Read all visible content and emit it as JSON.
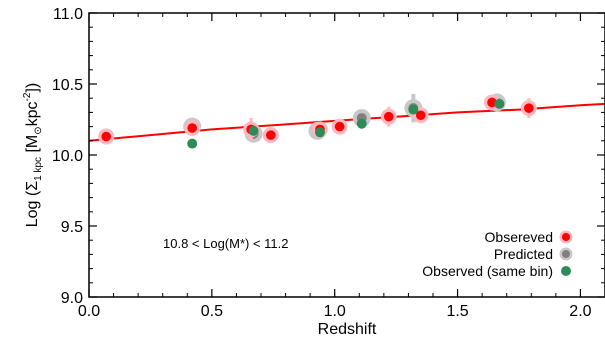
{
  "chart_data": {
    "type": "scatter",
    "xlabel": "Redshift",
    "ylabel": "Log (Σ1 kpc [M⊙kpc⁻²])",
    "xlim": [
      0.0,
      2.1
    ],
    "ylim": [
      9.0,
      11.0
    ],
    "x_ticks": [
      "0.0",
      "0.5",
      "1.0",
      "1.5",
      "2.0"
    ],
    "y_ticks": [
      "9.0",
      "9.5",
      "10.0",
      "10.5",
      "11.0"
    ],
    "annotation": "10.8 < Log(M*) < 11.2",
    "legend": {
      "position": "bottom-right",
      "entries": [
        "Obsereved",
        "Predicted",
        "Observed (same bin)"
      ]
    },
    "colors": {
      "observed": "#ff0000",
      "observed_halo": "#ffb7c0",
      "predicted": "#808080",
      "predicted_halo": "#c8c8c8",
      "same_bin": "#2e8b57",
      "fit": "#ff0000"
    },
    "fit_curve": {
      "x": [
        0.0,
        0.25,
        0.5,
        0.75,
        1.0,
        1.25,
        1.5,
        1.75,
        2.0,
        2.1
      ],
      "y": [
        10.1,
        10.14,
        10.18,
        10.21,
        10.24,
        10.27,
        10.3,
        10.32,
        10.35,
        10.36
      ]
    },
    "series": [
      {
        "name": "Obsereved",
        "points": [
          {
            "x": 0.07,
            "y": 10.13,
            "err": 0.03
          },
          {
            "x": 0.42,
            "y": 10.19,
            "err": 0.03
          },
          {
            "x": 0.66,
            "y": 10.18,
            "err": 0.08
          },
          {
            "x": 0.74,
            "y": 10.14,
            "err": 0.03
          },
          {
            "x": 0.94,
            "y": 10.18,
            "err": 0.03
          },
          {
            "x": 1.02,
            "y": 10.2,
            "err": 0.03
          },
          {
            "x": 1.22,
            "y": 10.27,
            "err": 0.07
          },
          {
            "x": 1.35,
            "y": 10.28,
            "err": 0.05
          },
          {
            "x": 1.64,
            "y": 10.37,
            "err": 0.05
          },
          {
            "x": 1.79,
            "y": 10.33,
            "err": 0.07
          }
        ]
      },
      {
        "name": "Predicted",
        "points": [
          {
            "x": 0.42,
            "y": 10.2,
            "err": 0.03
          },
          {
            "x": 0.67,
            "y": 10.15,
            "err": 0.04
          },
          {
            "x": 0.93,
            "y": 10.17,
            "err": 0.03
          },
          {
            "x": 1.11,
            "y": 10.26,
            "err": 0.04
          },
          {
            "x": 1.32,
            "y": 10.33,
            "err": 0.1
          },
          {
            "x": 1.66,
            "y": 10.37,
            "err": 0.03
          }
        ]
      },
      {
        "name": "Observed (same bin)",
        "points": [
          {
            "x": 0.42,
            "y": 10.08
          },
          {
            "x": 0.67,
            "y": 10.17
          },
          {
            "x": 0.94,
            "y": 10.16
          },
          {
            "x": 1.11,
            "y": 10.22
          },
          {
            "x": 1.32,
            "y": 10.32
          },
          {
            "x": 1.67,
            "y": 10.36
          }
        ]
      }
    ]
  }
}
